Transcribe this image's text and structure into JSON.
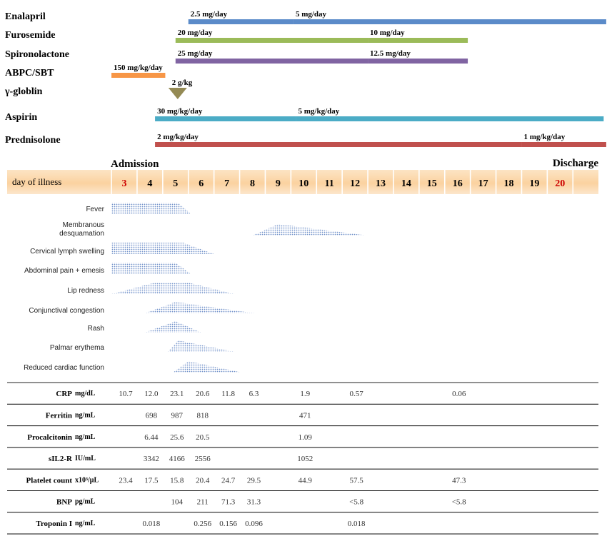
{
  "medications": [
    {
      "name": "Enalapril",
      "color": "#5b8bc9",
      "segments": [
        {
          "start": 5.5,
          "end": 9.6,
          "dose": "2.5 mg/day"
        },
        {
          "start": 9.6,
          "end": 21.8,
          "dose": "5 mg/day"
        }
      ]
    },
    {
      "name": "Furosemide",
      "color": "#9bbb59",
      "segments": [
        {
          "start": 5.0,
          "end": 12.5,
          "dose": "20 mg/day"
        },
        {
          "start": 12.5,
          "end": 16.4,
          "dose": "10 mg/day"
        }
      ]
    },
    {
      "name": "Spironolactone",
      "color": "#8064a2",
      "segments": [
        {
          "start": 5.0,
          "end": 12.5,
          "dose": "25 mg/day"
        },
        {
          "start": 12.5,
          "end": 16.4,
          "dose": "12.5 mg/day"
        }
      ]
    },
    {
      "name": "ABPC/SBT",
      "color": "#f79646",
      "segments": [
        {
          "start": 2.5,
          "end": 4.6,
          "dose": "150 mg/kg/day"
        }
      ]
    },
    {
      "name": "γ-globlin",
      "color": "#948a54",
      "marker": "triangle",
      "segments": [
        {
          "start": 5.0,
          "end": 5.0,
          "dose": "2 g/kg"
        }
      ]
    },
    {
      "name": "Aspirin",
      "color": "#4bacc6",
      "segments": [
        {
          "start": 4.2,
          "end": 9.7,
          "dose": "30 mg/kg/day"
        },
        {
          "start": 9.7,
          "end": 21.7,
          "dose": "5 mg/kg/day"
        }
      ]
    },
    {
      "name": "Prednisolone",
      "color": "#c0504d",
      "segments": [
        {
          "start": 4.2,
          "end": 18.5,
          "dose": "2 mg/kg/day"
        },
        {
          "start": 18.5,
          "end": 21.8,
          "dose": "1 mg/kg/day"
        }
      ]
    }
  ],
  "timeline": {
    "label": "day of illness",
    "days": [
      "3",
      "4",
      "5",
      "6",
      "7",
      "8",
      "9",
      "10",
      "11",
      "12",
      "13",
      "14",
      "15",
      "16",
      "17",
      "18",
      "19",
      "20"
    ],
    "highlight_days": [
      "3",
      "20"
    ],
    "highlight_color": "#cc0000",
    "admission": "Admission",
    "discharge": "Discharge"
  },
  "symptoms": [
    {
      "name": "Fever",
      "start": 2.5,
      "peak_start": 2.5,
      "peak_end": 5.1,
      "end": 5.6
    },
    {
      "name": "Membranous\ndesquamation",
      "start": 8.0,
      "peak_start": 9.0,
      "peak_end": 9.0,
      "end": 12.5
    },
    {
      "name": "Cervical lymph swelling",
      "start": 2.5,
      "peak_start": 2.5,
      "peak_end": 5.3,
      "end": 6.5
    },
    {
      "name": "Abdominal pain + emesis",
      "start": 2.5,
      "peak_start": 2.5,
      "peak_end": 5.0,
      "end": 5.6
    },
    {
      "name": "Lip redness",
      "start": 2.5,
      "peak_start": 4.2,
      "peak_end": 5.5,
      "end": 7.3
    },
    {
      "name": "Conjunctival congestion",
      "start": 3.8,
      "peak_start": 5.0,
      "peak_end": 5.0,
      "end": 8.1
    },
    {
      "name": "Rash",
      "start": 3.8,
      "peak_start": 5.0,
      "peak_end": 5.0,
      "end": 6.0
    },
    {
      "name": "Palmar erythema",
      "start": 4.7,
      "peak_start": 5.1,
      "peak_end": 5.1,
      "end": 7.3
    },
    {
      "name": "Reduced cardiac function",
      "start": 4.9,
      "peak_start": 5.5,
      "peak_end": 5.5,
      "end": 7.6
    }
  ],
  "labs": [
    {
      "name": "CRP",
      "unit": "mg/dL",
      "values": [
        {
          "day": 3,
          "v": "10.7"
        },
        {
          "day": 4,
          "v": "12.0"
        },
        {
          "day": 5,
          "v": "23.1"
        },
        {
          "day": 6,
          "v": "20.6"
        },
        {
          "day": 7,
          "v": "11.8"
        },
        {
          "day": 8,
          "v": "6.3"
        },
        {
          "day": 10,
          "v": "1.9"
        },
        {
          "day": 12,
          "v": "0.57"
        },
        {
          "day": 16,
          "v": "0.06"
        }
      ]
    },
    {
      "name": "Ferritin",
      "unit": "ng/mL",
      "values": [
        {
          "day": 4,
          "v": "698"
        },
        {
          "day": 5,
          "v": "987"
        },
        {
          "day": 6,
          "v": "818"
        },
        {
          "day": 10,
          "v": "471"
        }
      ]
    },
    {
      "name": "Procalcitonin",
      "unit": "ng/mL",
      "values": [
        {
          "day": 4,
          "v": "6.44"
        },
        {
          "day": 5,
          "v": "25.6"
        },
        {
          "day": 6,
          "v": "20.5"
        },
        {
          "day": 10,
          "v": "1.09"
        }
      ]
    },
    {
      "name": "sIL2-R",
      "unit": "IU/mL",
      "values": [
        {
          "day": 4,
          "v": "3342"
        },
        {
          "day": 5,
          "v": "4166"
        },
        {
          "day": 6,
          "v": "2556"
        },
        {
          "day": 10,
          "v": "1052"
        }
      ]
    },
    {
      "name": "Platelet count",
      "unit": "x10³/μL",
      "values": [
        {
          "day": 3,
          "v": "23.4"
        },
        {
          "day": 4,
          "v": "17.5"
        },
        {
          "day": 5,
          "v": "15.8"
        },
        {
          "day": 6,
          "v": "20.4"
        },
        {
          "day": 7,
          "v": "24.7"
        },
        {
          "day": 8,
          "v": "29.5"
        },
        {
          "day": 10,
          "v": "44.9"
        },
        {
          "day": 12,
          "v": "57.5"
        },
        {
          "day": 16,
          "v": "47.3"
        }
      ]
    },
    {
      "name": "BNP",
      "unit": "pg/mL",
      "values": [
        {
          "day": 5,
          "v": "104"
        },
        {
          "day": 6,
          "v": "211"
        },
        {
          "day": 7,
          "v": "71.3"
        },
        {
          "day": 8,
          "v": "31.3"
        },
        {
          "day": 12,
          "v": "<5.8"
        },
        {
          "day": 16,
          "v": "<5.8"
        }
      ]
    },
    {
      "name": "Troponin I",
      "unit": "ng/mL",
      "values": [
        {
          "day": 4,
          "v": "0.018"
        },
        {
          "day": 6,
          "v": "0.256"
        },
        {
          "day": 7,
          "v": "0.156"
        },
        {
          "day": 8,
          "v": "0.096"
        },
        {
          "day": 12,
          "v": "0.018"
        }
      ]
    }
  ]
}
